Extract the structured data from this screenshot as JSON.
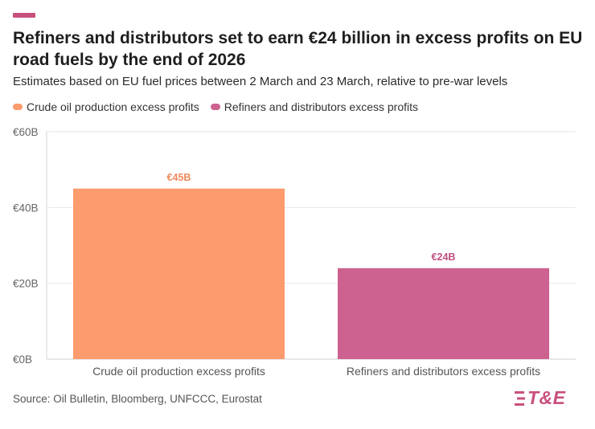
{
  "title": "Refiners and distributors set to earn €24 billion in excess profits on EU road fuels by the end of 2026",
  "subtitle": "Estimates based on EU fuel prices between 2 March and 23 March, relative to pre-war levels",
  "legend": [
    {
      "label": "Crude oil production excess profits",
      "color": "#fc9b6e"
    },
    {
      "label": "Refiners and distributors excess profits",
      "color": "#cd6190"
    }
  ],
  "source": "Source: Oil Bulletin, Bloomberg, UNFCCC, Eurostat",
  "logo": {
    "text": "T&E",
    "color": "#c8507e"
  },
  "chart_data": {
    "type": "bar",
    "categories": [
      "Crude oil production excess profits",
      "Refiners and distributors excess profits"
    ],
    "values": [
      45,
      24
    ],
    "colors": [
      "#fc9b6e",
      "#cd6190"
    ],
    "data_labels": [
      "€45B",
      "€24B"
    ],
    "label_colors": [
      "#f08a5d",
      "#c0507e"
    ],
    "ylim": [
      0,
      60
    ],
    "yticks": [
      0,
      20,
      40,
      60
    ],
    "ytick_labels": [
      "€0B",
      "€20B",
      "€40B",
      "€60B"
    ],
    "title": "",
    "xlabel": "",
    "ylabel": "",
    "grid": true,
    "legend_position": "top-left"
  }
}
